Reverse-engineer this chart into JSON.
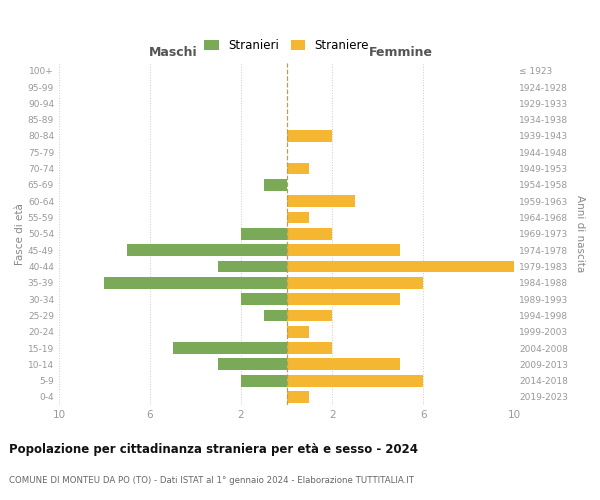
{
  "age_groups": [
    "100+",
    "95-99",
    "90-94",
    "85-89",
    "80-84",
    "75-79",
    "70-74",
    "65-69",
    "60-64",
    "55-59",
    "50-54",
    "45-49",
    "40-44",
    "35-39",
    "30-34",
    "25-29",
    "20-24",
    "15-19",
    "10-14",
    "5-9",
    "0-4"
  ],
  "birth_years": [
    "≤ 1923",
    "1924-1928",
    "1929-1933",
    "1934-1938",
    "1939-1943",
    "1944-1948",
    "1949-1953",
    "1954-1958",
    "1959-1963",
    "1964-1968",
    "1969-1973",
    "1974-1978",
    "1979-1983",
    "1984-1988",
    "1989-1993",
    "1994-1998",
    "1999-2003",
    "2004-2008",
    "2009-2013",
    "2014-2018",
    "2019-2023"
  ],
  "males": [
    0,
    0,
    0,
    0,
    0,
    0,
    0,
    1,
    0,
    0,
    2,
    7,
    3,
    8,
    2,
    1,
    0,
    5,
    3,
    2,
    0
  ],
  "females": [
    0,
    0,
    0,
    0,
    2,
    0,
    1,
    0,
    3,
    1,
    2,
    5,
    10,
    6,
    5,
    2,
    1,
    2,
    5,
    6,
    1
  ],
  "male_color": "#7aaa58",
  "female_color": "#f5b731",
  "bg_color": "#ffffff",
  "grid_color": "#cccccc",
  "center_line_color": "#b0a060",
  "title": "Popolazione per cittadinanza straniera per età e sesso - 2024",
  "subtitle": "COMUNE DI MONTEU DA PO (TO) - Dati ISTAT al 1° gennaio 2024 - Elaborazione TUTTITALIA.IT",
  "label_maschi": "Maschi",
  "label_femmine": "Femmine",
  "label_fasce": "Fasce di età",
  "label_anni": "Anni di nascita",
  "legend_stranieri": "Stranieri",
  "legend_straniere": "Straniere",
  "xlim": 10,
  "xtick_positions": [
    -10,
    -6,
    -2,
    2,
    6,
    10
  ],
  "xtick_labels": [
    "10",
    "6",
    "2",
    "2",
    "6",
    "10"
  ]
}
